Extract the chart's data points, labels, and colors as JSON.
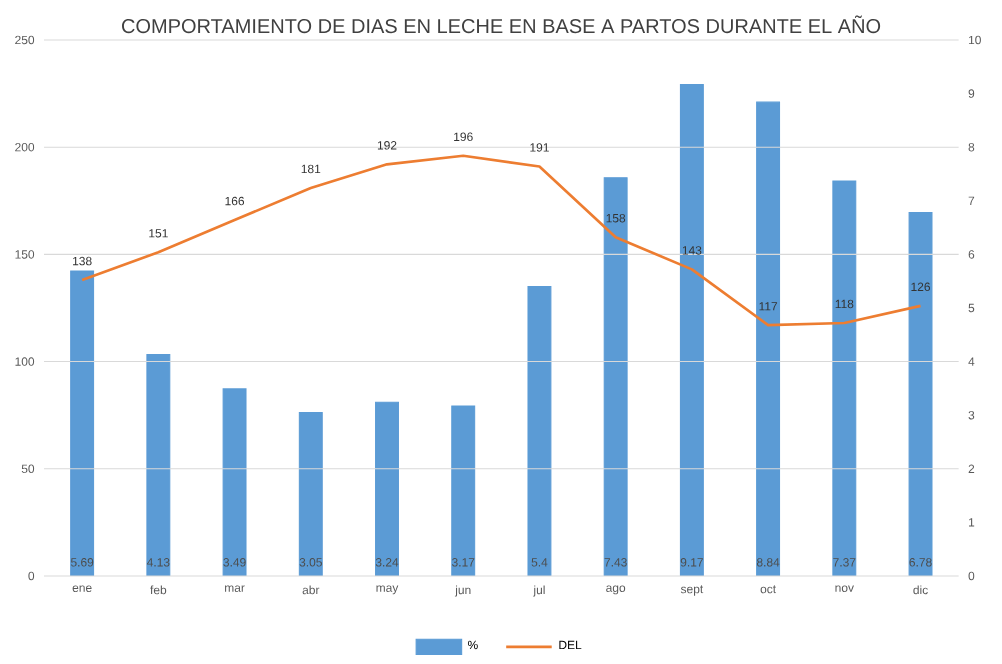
{
  "chart_data": {
    "type": "bar",
    "title": "COMPORTAMIENTO DE DIAS EN LECHE EN BASE A PARTOS DURANTE EL AÑO",
    "categories": [
      "ene",
      "feb",
      "mar",
      "abr",
      "may",
      "jun",
      "jul",
      "ago",
      "sept",
      "oct",
      "nov",
      "dic"
    ],
    "series": [
      {
        "name": "%",
        "axis": "y2",
        "color": "#5b9bd5",
        "values": [
          5.69,
          4.13,
          3.49,
          3.05,
          3.24,
          3.17,
          5.4,
          7.43,
          9.17,
          8.84,
          7.37,
          6.78
        ]
      },
      {
        "name": "DEL",
        "type": "line",
        "color": "#ed7d31",
        "marker": "none",
        "values": [
          138,
          151,
          166,
          181,
          192,
          196,
          191,
          158,
          143,
          117,
          118,
          126
        ]
      }
    ],
    "ylim": [
      0,
      250
    ],
    "yticks": [
      0,
      50,
      100,
      150,
      200,
      250
    ],
    "y2lim": [
      0,
      10
    ],
    "y2ticks": [
      0,
      1,
      2,
      3,
      4,
      5,
      6,
      7,
      8,
      9,
      10
    ],
    "grid": "y",
    "legend": "bottom",
    "data_labels": true
  }
}
